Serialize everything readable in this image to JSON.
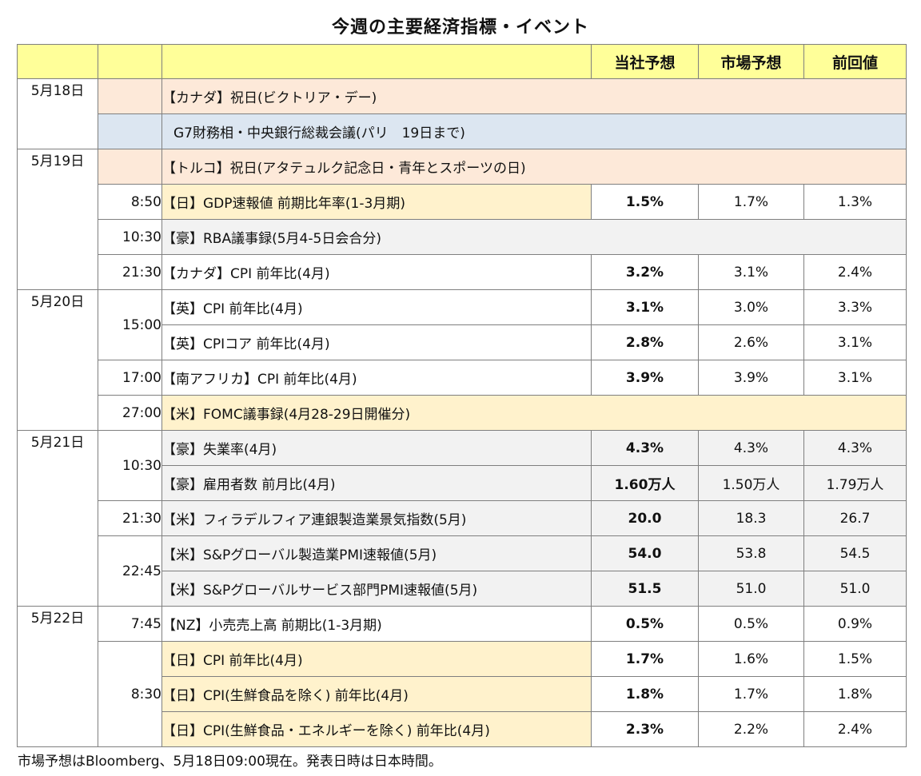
{
  "title": "今週の主要経済指標・イベント",
  "header": {
    "blank1": "",
    "blank2": "",
    "blank3": "",
    "forecast_ours": "当社予想",
    "forecast_market": "市場予想",
    "previous": "前回値"
  },
  "rows": [
    {
      "date": "5月18日",
      "date_rows": 2,
      "time": "",
      "time_rows": 1,
      "item": "【カナダ】祝日(ビクトリア・デー)",
      "span": true,
      "bg": "peach"
    },
    {
      "time": "",
      "time_rows": 1,
      "item": "G7財務相・中央銀行総裁会議(パリ　19日まで)",
      "span": true,
      "bg": "blue",
      "indent": true
    },
    {
      "date": "5月19日",
      "date_rows": 4,
      "time": "",
      "time_rows": 1,
      "item": "【トルコ】祝日(アタテュルク記念日・青年とスポーツの日)",
      "span": true,
      "bg": "peach"
    },
    {
      "time": "8:50",
      "time_rows": 1,
      "item": "【日】GDP速報値 前期比年率(1-3月期)",
      "bg": "cream",
      "ours": "1.5%",
      "market": "1.7%",
      "prev": "1.3%"
    },
    {
      "time": "10:30",
      "time_rows": 1,
      "item": "【豪】RBA議事録(5月4-5日会合分)",
      "span": true,
      "bg": "gray"
    },
    {
      "time": "21:30",
      "time_rows": 1,
      "item": "【カナダ】CPI 前年比(4月)",
      "bg": "white",
      "ours": "3.2%",
      "market": "3.1%",
      "prev": "2.4%"
    },
    {
      "date": "5月20日",
      "date_rows": 4,
      "time": "15:00",
      "time_rows": 2,
      "item": "【英】CPI 前年比(4月)",
      "bg": "white",
      "ours": "3.1%",
      "market": "3.0%",
      "prev": "3.3%"
    },
    {
      "item": "【英】CPIコア 前年比(4月)",
      "bg": "white",
      "ours": "2.8%",
      "market": "2.6%",
      "prev": "3.1%"
    },
    {
      "time": "17:00",
      "time_rows": 1,
      "item": "【南アフリカ】CPI 前年比(4月)",
      "bg": "white",
      "ours": "3.9%",
      "market": "3.9%",
      "prev": "3.1%"
    },
    {
      "time": "27:00",
      "time_rows": 1,
      "item": "【米】FOMC議事録(4月28-29日開催分)",
      "span": true,
      "bg": "cream"
    },
    {
      "date": "5月21日",
      "date_rows": 5,
      "time": "10:30",
      "time_rows": 2,
      "item": "【豪】失業率(4月)",
      "bg": "gray",
      "ours": "4.3%",
      "market": "4.3%",
      "prev": "4.3%"
    },
    {
      "item": "【豪】雇用者数 前月比(4月)",
      "bg": "gray",
      "ours": "1.60万人",
      "market": "1.50万人",
      "prev": "1.79万人"
    },
    {
      "time": "21:30",
      "time_rows": 1,
      "item": "【米】フィラデルフィア連銀製造業景気指数(5月)",
      "bg": "gray",
      "ours": "20.0",
      "market": "18.3",
      "prev": "26.7"
    },
    {
      "time": "22:45",
      "time_rows": 2,
      "item": "【米】S&Pグローバル製造業PMI速報値(5月)",
      "bg": "gray",
      "ours": "54.0",
      "market": "53.8",
      "prev": "54.5"
    },
    {
      "item": "【米】S&Pグローバルサービス部門PMI速報値(5月)",
      "bg": "gray",
      "ours": "51.5",
      "market": "51.0",
      "prev": "51.0"
    },
    {
      "date": "5月22日",
      "date_rows": 4,
      "time": "7:45",
      "time_rows": 1,
      "item": "【NZ】小売売上高 前期比(1-3月期)",
      "bg": "white",
      "ours": "0.5%",
      "market": "0.5%",
      "prev": "0.9%"
    },
    {
      "time": "8:30",
      "time_rows": 3,
      "item": "【日】CPI 前年比(4月)",
      "bg": "cream",
      "ours": "1.7%",
      "market": "1.6%",
      "prev": "1.5%"
    },
    {
      "item": "【日】CPI(生鮮食品を除く) 前年比(4月)",
      "bg": "cream",
      "ours": "1.8%",
      "market": "1.7%",
      "prev": "1.8%"
    },
    {
      "item": "【日】CPI(生鮮食品・エネルギーを除く) 前年比(4月)",
      "bg": "cream",
      "ours": "2.3%",
      "market": "2.2%",
      "prev": "2.4%"
    }
  ],
  "footnote": "市場予想はBloomberg、5月18日09:00現在。発表日時は日本時間。"
}
